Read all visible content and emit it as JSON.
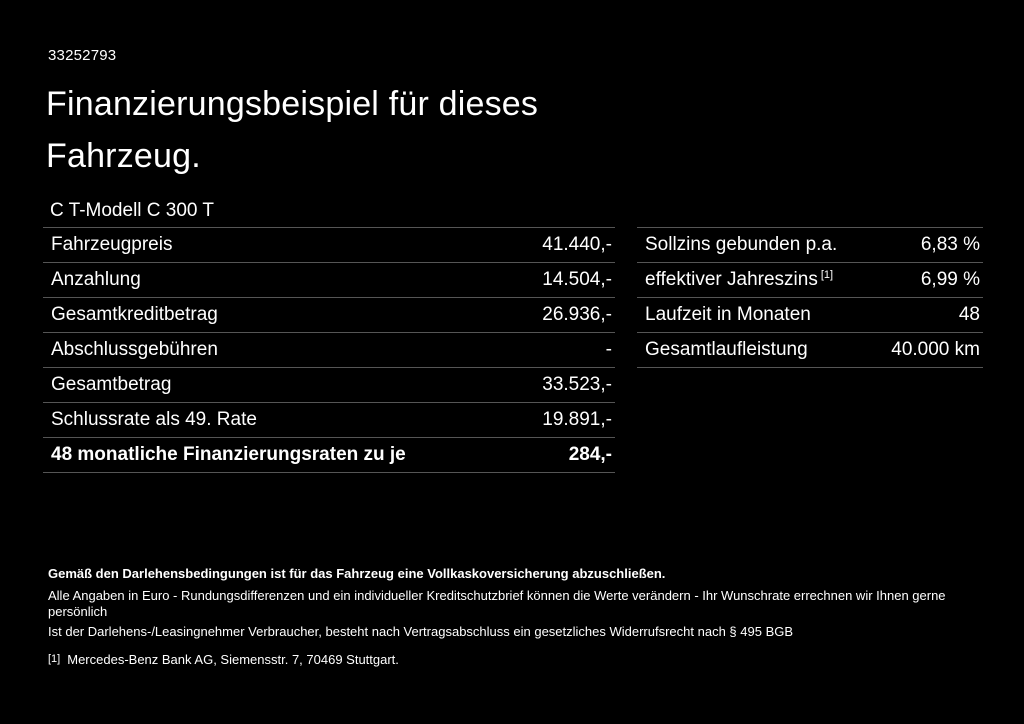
{
  "page": {
    "id_number": "33252793",
    "title_line1": "Finanzierungsbeispiel für dieses",
    "title_line2": "Fahrzeug.",
    "subtitle": "C T-Modell C 300 T"
  },
  "left_table": {
    "rows": [
      {
        "label": "Fahrzeugpreis",
        "value": "41.440,-"
      },
      {
        "label": "Anzahlung",
        "value": "14.504,-"
      },
      {
        "label": "Gesamtkreditbetrag",
        "value": "26.936,-"
      },
      {
        "label": "Abschlussgebühren",
        "value": "-"
      },
      {
        "label": "Gesamtbetrag",
        "value": "33.523,-"
      },
      {
        "label": "Schlussrate als 49. Rate",
        "value": "19.891,-"
      },
      {
        "label": "48 monatliche Finanzierungsraten zu je",
        "value": "284,-"
      }
    ]
  },
  "right_table": {
    "rows": [
      {
        "label": "Sollzins gebunden p.a.",
        "superscript": "",
        "value": "6,83 %"
      },
      {
        "label": "effektiver Jahreszins",
        "superscript": "[1]",
        "value": "6,99 %"
      },
      {
        "label": "Laufzeit in Monaten",
        "superscript": "",
        "value": "48"
      },
      {
        "label": "Gesamtlaufleistung",
        "superscript": "",
        "value": "40.000 km"
      }
    ]
  },
  "footer": {
    "bold_note": "Gemäß den Darlehensbedingungen ist für das Fahrzeug eine Vollkaskoversicherung abzuschließen.",
    "note1": "Alle Angaben in Euro - Rundungsdifferenzen und ein individueller Kreditschutzbrief können die Werte verändern - Ihr Wunschrate errechnen wir Ihnen gerne persönlich",
    "note2": "Ist der Darlehens-/Leasingnehmer Verbraucher, besteht nach Vertragsabschluss ein gesetzliches Widerrufsrecht nach § 495 BGB",
    "footnote_marker": "[1]",
    "footnote_text": "Mercedes-Benz Bank AG, Siemensstr. 7, 70469 Stuttgart."
  },
  "colors": {
    "background": "#000000",
    "text": "#ffffff",
    "divider": "#555555"
  }
}
